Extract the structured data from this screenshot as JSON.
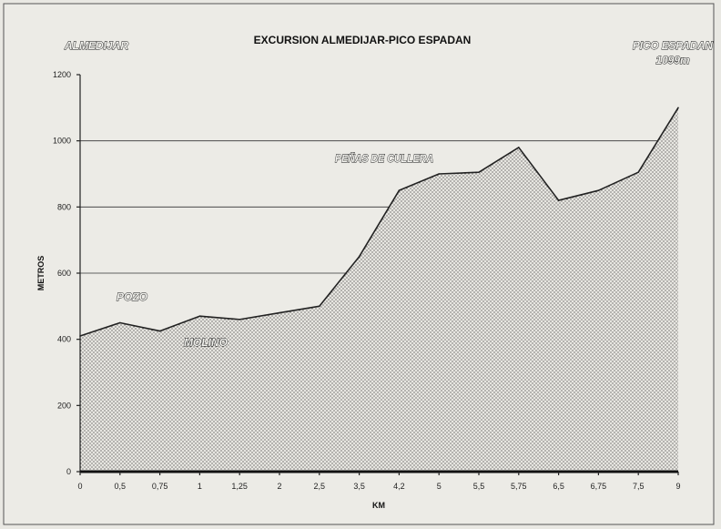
{
  "chart_data": {
    "type": "area",
    "title": "EXCURSION ALMEDIJAR-PICO ESPADAN",
    "xlabel": "KM",
    "ylabel": "METROS",
    "ylim": [
      0,
      1200
    ],
    "yticks": [
      0,
      200,
      400,
      600,
      800,
      1000,
      1200
    ],
    "grid": "horizontal",
    "categories": [
      "0",
      "0,5",
      "0,75",
      "1",
      "1,25",
      "2",
      "2,5",
      "3,5",
      "4,2",
      "5",
      "5,5",
      "5,75",
      "6,5",
      "6,75",
      "7,5",
      "9"
    ],
    "series": [
      {
        "values": [
          410,
          450,
          425,
          470,
          460,
          480,
          500,
          650,
          850,
          900,
          905,
          980,
          820,
          850,
          905,
          1100
        ]
      }
    ],
    "annotations": [
      {
        "id": "almedijar",
        "text": "ALMEDIJAR"
      },
      {
        "id": "pico1",
        "text": "PICO ESPADAN"
      },
      {
        "id": "pico2",
        "text": "1099m"
      },
      {
        "id": "penas",
        "text": "PEÑAS DE CULLERA"
      },
      {
        "id": "pozo",
        "text": "POZO"
      },
      {
        "id": "molino",
        "text": "MOLINO"
      }
    ]
  }
}
